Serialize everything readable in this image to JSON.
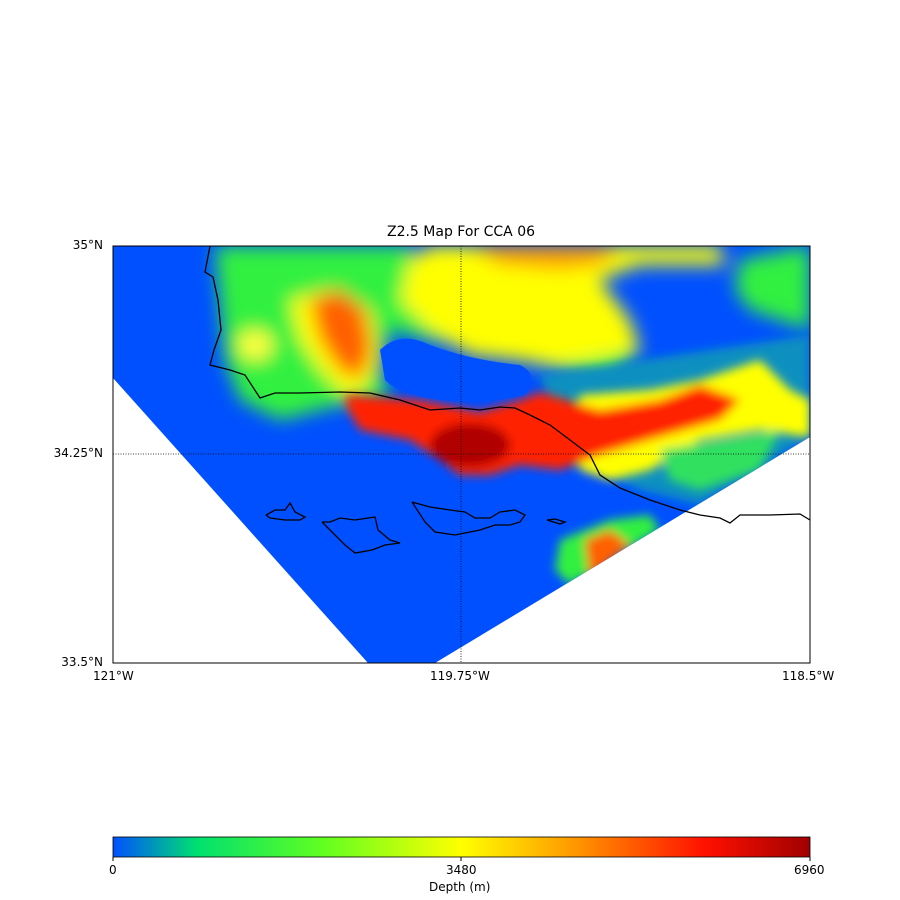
{
  "title": "Z2.5 Map For CCA 06",
  "map": {
    "lat_labels": [
      "35°N",
      "34.25°N",
      "33.5°N"
    ],
    "lon_labels": [
      "121°W",
      "119.75°W",
      "118.5°W"
    ],
    "lat_range": [
      33.5,
      35
    ],
    "lon_range": [
      -121,
      -118.5
    ],
    "gridlines": {
      "lat": 34.25,
      "lon": -119.75,
      "style": "dotted"
    },
    "nodata_color": "#ffffff",
    "coastline_color": "#000000"
  },
  "colorbar": {
    "label": "Depth (m)",
    "ticks": [
      "0",
      "3480",
      "6960"
    ],
    "range": [
      0,
      6960
    ],
    "colormap": [
      "#0050ff",
      "#00e070",
      "#60ff20",
      "#ffff00",
      "#ffa000",
      "#ff1000",
      "#a00000"
    ]
  }
}
